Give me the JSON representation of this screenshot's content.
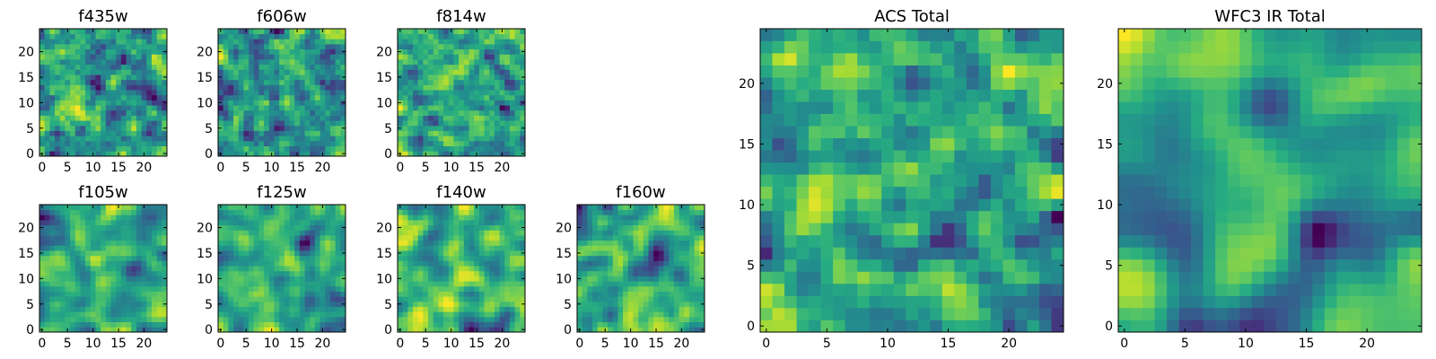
{
  "figure": {
    "colormap": "viridis",
    "seed": 20240611
  },
  "chart_data": [
    {
      "type": "heatmap",
      "title": "f435w",
      "grid_size": 25,
      "xlim": [
        0,
        24
      ],
      "ylim": [
        0,
        24
      ],
      "xticks": [
        0,
        5,
        10,
        15,
        20
      ],
      "yticks": [
        0,
        5,
        10,
        15,
        20
      ],
      "smoothness": 0.2,
      "contrast": 1.0,
      "mean_level": 0.64
    },
    {
      "type": "heatmap",
      "title": "f606w",
      "grid_size": 25,
      "xlim": [
        0,
        24
      ],
      "ylim": [
        0,
        24
      ],
      "xticks": [
        0,
        5,
        10,
        15,
        20
      ],
      "yticks": [
        0,
        5,
        10,
        15,
        20
      ],
      "smoothness": 0.15,
      "contrast": 1.0,
      "mean_level": 0.62
    },
    {
      "type": "heatmap",
      "title": "f814w",
      "grid_size": 25,
      "xlim": [
        0,
        24
      ],
      "ylim": [
        0,
        24
      ],
      "xticks": [
        0,
        5,
        10,
        15,
        20
      ],
      "yticks": [
        0,
        5,
        10,
        15,
        20
      ],
      "smoothness": 0.3,
      "contrast": 1.0,
      "mean_level": 0.64
    },
    {
      "type": "heatmap",
      "title": "f105w",
      "grid_size": 25,
      "xlim": [
        0,
        24
      ],
      "ylim": [
        0,
        24
      ],
      "xticks": [
        0,
        5,
        10,
        15,
        20
      ],
      "yticks": [
        0,
        5,
        10,
        15,
        20
      ],
      "smoothness": 0.6,
      "contrast": 1.0,
      "mean_level": 0.6
    },
    {
      "type": "heatmap",
      "title": "f125w",
      "grid_size": 25,
      "xlim": [
        0,
        24
      ],
      "ylim": [
        0,
        24
      ],
      "xticks": [
        0,
        5,
        10,
        15,
        20
      ],
      "yticks": [
        0,
        5,
        10,
        15,
        20
      ],
      "smoothness": 0.5,
      "contrast": 1.0,
      "mean_level": 0.62
    },
    {
      "type": "heatmap",
      "title": "f140w",
      "grid_size": 25,
      "xlim": [
        0,
        24
      ],
      "ylim": [
        0,
        24
      ],
      "xticks": [
        0,
        5,
        10,
        15,
        20
      ],
      "yticks": [
        0,
        5,
        10,
        15,
        20
      ],
      "smoothness": 0.55,
      "contrast": 1.0,
      "mean_level": 0.58
    },
    {
      "type": "heatmap",
      "title": "f160w",
      "grid_size": 25,
      "xlim": [
        0,
        24
      ],
      "ylim": [
        0,
        24
      ],
      "xticks": [
        0,
        5,
        10,
        15,
        20
      ],
      "yticks": [
        0,
        5,
        10,
        15,
        20
      ],
      "smoothness": 0.6,
      "contrast": 1.0,
      "mean_level": 0.6
    },
    {
      "type": "heatmap",
      "title": "ACS Total",
      "grid_size": 25,
      "xlim": [
        0,
        24
      ],
      "ylim": [
        0,
        24
      ],
      "xticks": [
        0,
        5,
        10,
        15,
        20
      ],
      "yticks": [
        0,
        5,
        10,
        15,
        20
      ],
      "smoothness": 0.25,
      "contrast": 1.0,
      "mean_level": 0.66
    },
    {
      "type": "heatmap",
      "title": "WFC3 IR Total",
      "grid_size": 25,
      "xlim": [
        0,
        24
      ],
      "ylim": [
        0,
        24
      ],
      "xticks": [
        0,
        5,
        10,
        15,
        20
      ],
      "yticks": [
        0,
        5,
        10,
        15,
        20
      ],
      "smoothness": 0.9,
      "contrast": 1.0,
      "mean_level": 0.58
    }
  ]
}
